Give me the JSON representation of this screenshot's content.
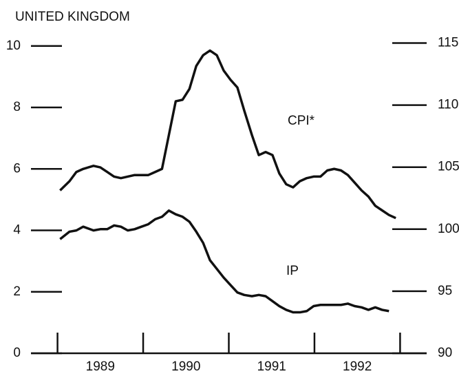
{
  "chart_data": {
    "type": "line",
    "title": "UNITED KINGDOM",
    "x": [
      1989.03,
      1989.14,
      1989.22,
      1989.3,
      1989.42,
      1989.5,
      1989.58,
      1989.66,
      1989.74,
      1989.82,
      1989.9,
      1989.98,
      1990.06,
      1990.14,
      1990.22,
      1990.3,
      1990.38,
      1990.46,
      1990.54,
      1990.62,
      1990.7,
      1990.78,
      1990.86,
      1990.94,
      1991.02,
      1991.1,
      1991.18,
      1991.27,
      1991.35,
      1991.43,
      1991.51,
      1991.59,
      1991.67,
      1991.75,
      1991.83,
      1991.91,
      1991.99,
      1992.07,
      1992.15,
      1992.23,
      1992.31,
      1992.39,
      1992.47,
      1992.55,
      1992.63,
      1992.71,
      1992.79,
      1992.87,
      1992.95
    ],
    "series": [
      {
        "name": "CPI*",
        "color": "#111111",
        "axis": "y",
        "values": [
          5.3,
          5.6,
          5.9,
          6.0,
          6.1,
          6.05,
          5.9,
          5.75,
          5.7,
          5.75,
          5.8,
          5.8,
          5.8,
          5.9,
          6.0,
          7.1,
          8.2,
          8.25,
          8.6,
          9.35,
          9.7,
          9.85,
          9.7,
          9.2,
          8.9,
          8.65,
          7.9,
          7.1,
          6.45,
          6.55,
          6.45,
          5.85,
          5.5,
          5.4,
          5.6,
          5.7,
          5.75,
          5.75,
          5.95,
          6.0,
          5.95,
          5.8,
          5.55,
          5.3,
          5.1,
          4.8,
          4.65,
          4.5,
          4.4
        ]
      },
      {
        "name": "IP",
        "color": "#111111",
        "axis": "y2",
        "values": [
          99.2,
          99.8,
          99.9,
          100.2,
          99.9,
          100.0,
          100.0,
          100.3,
          100.2,
          99.9,
          100.0,
          100.2,
          100.4,
          100.8,
          101.0,
          101.5,
          101.2,
          101.0,
          100.6,
          99.8,
          98.9,
          97.5,
          96.8,
          96.1,
          95.5,
          94.9,
          94.7,
          94.6,
          94.7,
          94.6,
          94.2,
          93.8,
          93.5,
          93.3,
          93.3,
          93.4,
          93.8,
          93.9,
          93.9,
          93.9,
          93.9,
          94.0,
          93.8,
          93.7,
          93.5,
          93.7,
          93.5,
          93.4,
          null
        ]
      }
    ],
    "xlim": [
      1988.69,
      1993.31
    ],
    "xticks": [
      1989,
      1990,
      1991,
      1992,
      1993
    ],
    "xticklabels": [
      {
        "value": 1989.5,
        "label": "1989"
      },
      {
        "value": 1990.5,
        "label": "1990"
      },
      {
        "value": 1991.5,
        "label": "1991"
      },
      {
        "value": 1992.5,
        "label": "1992"
      }
    ],
    "ylim": [
      0,
      10.6
    ],
    "yticks": [
      0,
      2,
      4,
      6,
      8,
      10
    ],
    "y2lim": [
      90,
      116.25
    ],
    "y2ticks": [
      90,
      95,
      100,
      105,
      110,
      115
    ]
  }
}
